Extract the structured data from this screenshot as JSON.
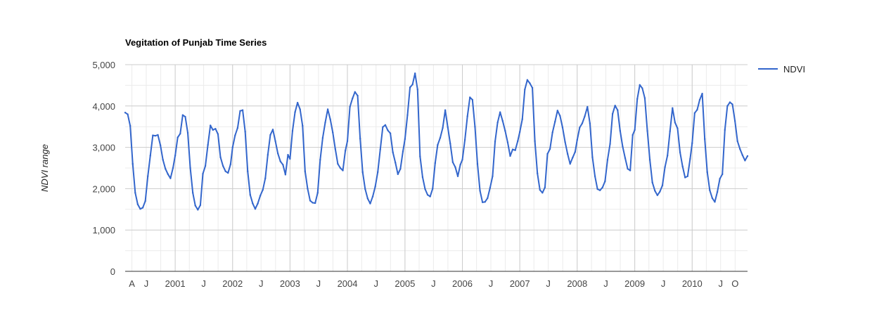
{
  "chart_data": {
    "type": "line",
    "title": "Vegitation of Punjab Time Series",
    "xlabel": "",
    "ylabel": "NDVI range",
    "ylim": [
      0,
      5000
    ],
    "yticks": [
      0,
      1000,
      2000,
      3000,
      4000,
      5000
    ],
    "ytick_labels": [
      "0",
      "1,000",
      "2,000",
      "3,000",
      "4,000",
      "5,000"
    ],
    "xlim": [
      "2000-02-18",
      "2010-12-19"
    ],
    "xticks": [
      {
        "date": "2000-04-01",
        "label": "A"
      },
      {
        "date": "2000-07-01",
        "label": "J"
      },
      {
        "date": "2001-01-01",
        "label": "2001"
      },
      {
        "date": "2001-07-01",
        "label": "J"
      },
      {
        "date": "2002-01-01",
        "label": "2002"
      },
      {
        "date": "2002-07-01",
        "label": "J"
      },
      {
        "date": "2003-01-01",
        "label": "2003"
      },
      {
        "date": "2003-07-01",
        "label": "J"
      },
      {
        "date": "2004-01-01",
        "label": "2004"
      },
      {
        "date": "2004-07-01",
        "label": "J"
      },
      {
        "date": "2005-01-01",
        "label": "2005"
      },
      {
        "date": "2005-07-01",
        "label": "J"
      },
      {
        "date": "2006-01-01",
        "label": "2006"
      },
      {
        "date": "2006-07-01",
        "label": "J"
      },
      {
        "date": "2007-01-01",
        "label": "2007"
      },
      {
        "date": "2007-07-01",
        "label": "J"
      },
      {
        "date": "2008-01-01",
        "label": "2008"
      },
      {
        "date": "2008-07-01",
        "label": "J"
      },
      {
        "date": "2009-01-01",
        "label": "2009"
      },
      {
        "date": "2009-07-01",
        "label": "J"
      },
      {
        "date": "2010-01-01",
        "label": "2010"
      },
      {
        "date": "2010-07-01",
        "label": "J"
      },
      {
        "date": "2010-10-01",
        "label": "O"
      }
    ],
    "grid": true,
    "legend": "right",
    "color": "#3366cc",
    "series": [
      {
        "name": "NDVI",
        "points": [
          [
            "2000-02-18",
            3840
          ],
          [
            "2000-03-05",
            3800
          ],
          [
            "2000-03-21",
            3520
          ],
          [
            "2000-04-06",
            2600
          ],
          [
            "2000-04-22",
            1900
          ],
          [
            "2000-05-08",
            1620
          ],
          [
            "2000-05-24",
            1510
          ],
          [
            "2000-06-09",
            1540
          ],
          [
            "2000-06-25",
            1700
          ],
          [
            "2000-07-11",
            2300
          ],
          [
            "2000-07-27",
            2800
          ],
          [
            "2000-08-12",
            3290
          ],
          [
            "2000-08-28",
            3280
          ],
          [
            "2000-09-13",
            3300
          ],
          [
            "2000-09-29",
            3050
          ],
          [
            "2000-10-15",
            2700
          ],
          [
            "2000-10-31",
            2480
          ],
          [
            "2000-11-16",
            2350
          ],
          [
            "2000-12-02",
            2250
          ],
          [
            "2000-12-18",
            2500
          ],
          [
            "2001-01-01",
            2800
          ],
          [
            "2001-01-17",
            3240
          ],
          [
            "2001-02-02",
            3330
          ],
          [
            "2001-02-18",
            3780
          ],
          [
            "2001-03-06",
            3740
          ],
          [
            "2001-03-22",
            3350
          ],
          [
            "2001-04-07",
            2500
          ],
          [
            "2001-04-23",
            1900
          ],
          [
            "2001-05-09",
            1590
          ],
          [
            "2001-05-25",
            1490
          ],
          [
            "2001-06-10",
            1600
          ],
          [
            "2001-06-26",
            2360
          ],
          [
            "2001-07-12",
            2550
          ],
          [
            "2001-07-28",
            3060
          ],
          [
            "2001-08-13",
            3530
          ],
          [
            "2001-08-29",
            3420
          ],
          [
            "2001-09-14",
            3450
          ],
          [
            "2001-09-30",
            3320
          ],
          [
            "2001-10-16",
            2760
          ],
          [
            "2001-11-01",
            2550
          ],
          [
            "2001-11-17",
            2420
          ],
          [
            "2001-12-03",
            2380
          ],
          [
            "2001-12-19",
            2590
          ],
          [
            "2002-01-01",
            3000
          ],
          [
            "2002-01-17",
            3290
          ],
          [
            "2002-02-02",
            3470
          ],
          [
            "2002-02-18",
            3880
          ],
          [
            "2002-03-06",
            3900
          ],
          [
            "2002-03-22",
            3380
          ],
          [
            "2002-04-07",
            2420
          ],
          [
            "2002-04-23",
            1850
          ],
          [
            "2002-05-09",
            1640
          ],
          [
            "2002-05-25",
            1510
          ],
          [
            "2002-06-10",
            1640
          ],
          [
            "2002-06-26",
            1830
          ],
          [
            "2002-07-12",
            1970
          ],
          [
            "2002-07-28",
            2250
          ],
          [
            "2002-08-13",
            2820
          ],
          [
            "2002-08-29",
            3300
          ],
          [
            "2002-09-14",
            3430
          ],
          [
            "2002-09-30",
            3150
          ],
          [
            "2002-10-16",
            2850
          ],
          [
            "2002-11-01",
            2660
          ],
          [
            "2002-11-17",
            2580
          ],
          [
            "2002-12-03",
            2340
          ],
          [
            "2002-12-19",
            2820
          ],
          [
            "2003-01-01",
            2720
          ],
          [
            "2003-01-17",
            3400
          ],
          [
            "2003-02-02",
            3850
          ],
          [
            "2003-02-18",
            4080
          ],
          [
            "2003-03-06",
            3920
          ],
          [
            "2003-03-22",
            3520
          ],
          [
            "2003-04-07",
            2420
          ],
          [
            "2003-04-23",
            2000
          ],
          [
            "2003-05-09",
            1710
          ],
          [
            "2003-05-25",
            1660
          ],
          [
            "2003-06-10",
            1650
          ],
          [
            "2003-06-26",
            1900
          ],
          [
            "2003-07-12",
            2700
          ],
          [
            "2003-07-28",
            3230
          ],
          [
            "2003-08-13",
            3600
          ],
          [
            "2003-08-29",
            3920
          ],
          [
            "2003-09-14",
            3680
          ],
          [
            "2003-09-30",
            3360
          ],
          [
            "2003-10-16",
            2960
          ],
          [
            "2003-11-01",
            2600
          ],
          [
            "2003-11-17",
            2500
          ],
          [
            "2003-12-03",
            2440
          ],
          [
            "2003-12-19",
            2920
          ],
          [
            "2004-01-01",
            3150
          ],
          [
            "2004-01-17",
            3980
          ],
          [
            "2004-02-02",
            4180
          ],
          [
            "2004-02-18",
            4340
          ],
          [
            "2004-03-06",
            4250
          ],
          [
            "2004-03-22",
            3210
          ],
          [
            "2004-04-07",
            2400
          ],
          [
            "2004-04-23",
            1990
          ],
          [
            "2004-05-09",
            1760
          ],
          [
            "2004-05-25",
            1640
          ],
          [
            "2004-06-10",
            1810
          ],
          [
            "2004-06-26",
            2050
          ],
          [
            "2004-07-12",
            2400
          ],
          [
            "2004-07-28",
            2950
          ],
          [
            "2004-08-13",
            3490
          ],
          [
            "2004-08-29",
            3540
          ],
          [
            "2004-09-14",
            3410
          ],
          [
            "2004-09-30",
            3340
          ],
          [
            "2004-10-16",
            2880
          ],
          [
            "2004-11-01",
            2630
          ],
          [
            "2004-11-17",
            2350
          ],
          [
            "2004-12-03",
            2480
          ],
          [
            "2004-12-19",
            2900
          ],
          [
            "2005-01-01",
            3200
          ],
          [
            "2005-01-17",
            3780
          ],
          [
            "2005-02-02",
            4450
          ],
          [
            "2005-02-18",
            4520
          ],
          [
            "2005-03-06",
            4790
          ],
          [
            "2005-03-22",
            4400
          ],
          [
            "2005-04-07",
            2780
          ],
          [
            "2005-04-23",
            2280
          ],
          [
            "2005-05-09",
            1990
          ],
          [
            "2005-05-25",
            1850
          ],
          [
            "2005-06-10",
            1810
          ],
          [
            "2005-06-26",
            2000
          ],
          [
            "2005-07-12",
            2620
          ],
          [
            "2005-07-28",
            3060
          ],
          [
            "2005-08-13",
            3230
          ],
          [
            "2005-08-29",
            3470
          ],
          [
            "2005-09-14",
            3900
          ],
          [
            "2005-09-30",
            3490
          ],
          [
            "2005-10-16",
            3090
          ],
          [
            "2005-11-01",
            2640
          ],
          [
            "2005-11-17",
            2520
          ],
          [
            "2005-12-03",
            2300
          ],
          [
            "2005-12-19",
            2580
          ],
          [
            "2006-01-01",
            2700
          ],
          [
            "2006-01-17",
            3180
          ],
          [
            "2006-02-02",
            3750
          ],
          [
            "2006-02-18",
            4210
          ],
          [
            "2006-03-06",
            4150
          ],
          [
            "2006-03-22",
            3500
          ],
          [
            "2006-04-07",
            2600
          ],
          [
            "2006-04-23",
            1950
          ],
          [
            "2006-05-09",
            1670
          ],
          [
            "2006-05-25",
            1680
          ],
          [
            "2006-06-10",
            1770
          ],
          [
            "2006-06-26",
            2020
          ],
          [
            "2006-07-12",
            2300
          ],
          [
            "2006-07-28",
            3140
          ],
          [
            "2006-08-13",
            3600
          ],
          [
            "2006-08-29",
            3850
          ],
          [
            "2006-09-14",
            3640
          ],
          [
            "2006-09-30",
            3400
          ],
          [
            "2006-10-16",
            3120
          ],
          [
            "2006-11-01",
            2790
          ],
          [
            "2006-11-17",
            2950
          ],
          [
            "2006-12-03",
            2930
          ],
          [
            "2006-12-19",
            3150
          ],
          [
            "2007-01-01",
            3370
          ],
          [
            "2007-01-17",
            3680
          ],
          [
            "2007-02-02",
            4400
          ],
          [
            "2007-02-18",
            4630
          ],
          [
            "2007-03-06",
            4550
          ],
          [
            "2007-03-22",
            4440
          ],
          [
            "2007-04-07",
            3150
          ],
          [
            "2007-04-23",
            2370
          ],
          [
            "2007-05-09",
            1970
          ],
          [
            "2007-05-25",
            1900
          ],
          [
            "2007-06-10",
            2030
          ],
          [
            "2007-06-26",
            2840
          ],
          [
            "2007-07-12",
            2960
          ],
          [
            "2007-07-28",
            3360
          ],
          [
            "2007-08-13",
            3620
          ],
          [
            "2007-08-29",
            3890
          ],
          [
            "2007-09-14",
            3760
          ],
          [
            "2007-09-30",
            3480
          ],
          [
            "2007-10-16",
            3130
          ],
          [
            "2007-11-01",
            2840
          ],
          [
            "2007-11-17",
            2600
          ],
          [
            "2007-12-03",
            2750
          ],
          [
            "2007-12-19",
            2890
          ],
          [
            "2008-01-01",
            3180
          ],
          [
            "2008-01-17",
            3480
          ],
          [
            "2008-02-02",
            3580
          ],
          [
            "2008-02-18",
            3750
          ],
          [
            "2008-03-06",
            3980
          ],
          [
            "2008-03-22",
            3580
          ],
          [
            "2008-04-07",
            2760
          ],
          [
            "2008-04-23",
            2300
          ],
          [
            "2008-05-09",
            1990
          ],
          [
            "2008-05-25",
            1960
          ],
          [
            "2008-06-10",
            2030
          ],
          [
            "2008-06-26",
            2180
          ],
          [
            "2008-07-12",
            2700
          ],
          [
            "2008-07-28",
            3080
          ],
          [
            "2008-08-13",
            3810
          ],
          [
            "2008-08-29",
            4010
          ],
          [
            "2008-09-14",
            3900
          ],
          [
            "2008-09-30",
            3400
          ],
          [
            "2008-10-16",
            3020
          ],
          [
            "2008-11-01",
            2740
          ],
          [
            "2008-11-17",
            2480
          ],
          [
            "2008-12-03",
            2440
          ],
          [
            "2008-12-19",
            3300
          ],
          [
            "2009-01-01",
            3420
          ],
          [
            "2009-01-17",
            4170
          ],
          [
            "2009-02-02",
            4510
          ],
          [
            "2009-02-18",
            4430
          ],
          [
            "2009-03-06",
            4190
          ],
          [
            "2009-03-22",
            3400
          ],
          [
            "2009-04-07",
            2700
          ],
          [
            "2009-04-23",
            2150
          ],
          [
            "2009-05-09",
            1950
          ],
          [
            "2009-05-25",
            1840
          ],
          [
            "2009-06-10",
            1930
          ],
          [
            "2009-06-26",
            2080
          ],
          [
            "2009-07-12",
            2520
          ],
          [
            "2009-07-28",
            2800
          ],
          [
            "2009-08-13",
            3390
          ],
          [
            "2009-08-29",
            3950
          ],
          [
            "2009-09-14",
            3600
          ],
          [
            "2009-09-30",
            3460
          ],
          [
            "2009-10-16",
            2880
          ],
          [
            "2009-11-01",
            2540
          ],
          [
            "2009-11-17",
            2270
          ],
          [
            "2009-12-03",
            2300
          ],
          [
            "2009-12-19",
            2720
          ],
          [
            "2010-01-01",
            3100
          ],
          [
            "2010-01-17",
            3830
          ],
          [
            "2010-02-02",
            3910
          ],
          [
            "2010-02-18",
            4150
          ],
          [
            "2010-03-06",
            4300
          ],
          [
            "2010-03-22",
            3200
          ],
          [
            "2010-04-07",
            2400
          ],
          [
            "2010-04-23",
            1960
          ],
          [
            "2010-05-09",
            1770
          ],
          [
            "2010-05-25",
            1680
          ],
          [
            "2010-06-10",
            1920
          ],
          [
            "2010-06-26",
            2240
          ],
          [
            "2010-07-12",
            2350
          ],
          [
            "2010-07-28",
            3420
          ],
          [
            "2010-08-13",
            4000
          ],
          [
            "2010-08-29",
            4090
          ],
          [
            "2010-09-14",
            4040
          ],
          [
            "2010-09-30",
            3640
          ],
          [
            "2010-10-16",
            3150
          ],
          [
            "2010-11-01",
            2960
          ],
          [
            "2010-11-17",
            2810
          ],
          [
            "2010-12-03",
            2680
          ],
          [
            "2010-12-19",
            2790
          ]
        ]
      }
    ]
  }
}
